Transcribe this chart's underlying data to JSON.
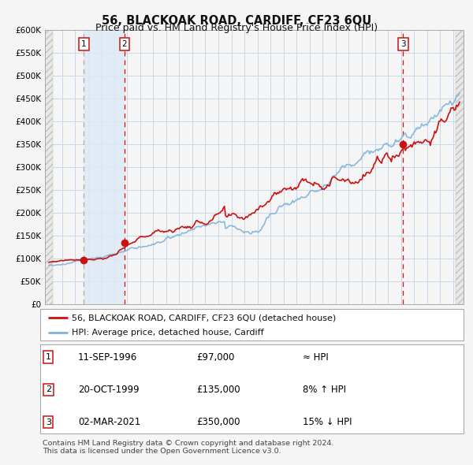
{
  "title": "56, BLACKOAK ROAD, CARDIFF, CF23 6QU",
  "subtitle": "Price paid vs. HM Land Registry's House Price Index (HPI)",
  "ylim": [
    0,
    600000
  ],
  "xlim_start": 1993.7,
  "xlim_end": 2025.8,
  "sale_dates": [
    1996.69,
    1999.8,
    2021.17
  ],
  "sale_prices": [
    97000,
    135000,
    350000
  ],
  "sale_labels": [
    "1",
    "2",
    "3"
  ],
  "shade_x1": 1996.69,
  "shade_x2": 1999.8,
  "hpi_color": "#7fb3d9",
  "price_color": "#cc1111",
  "dot_color": "#cc1111",
  "shade_color": "#deeaf5",
  "vline1_color": "#aaaaaa",
  "vline2_color": "#cc1111",
  "vline3_color": "#cc1111",
  "grid_color": "#c8d8e8",
  "bg_color": "#f5f5f5",
  "plot_bg": "#f5f5f5",
  "legend_label_price": "56, BLACKOAK ROAD, CARDIFF, CF23 6QU (detached house)",
  "legend_label_hpi": "HPI: Average price, detached house, Cardiff",
  "table_rows": [
    {
      "num": "1",
      "date": "11-SEP-1996",
      "price": "£97,000",
      "rel": "≈ HPI"
    },
    {
      "num": "2",
      "date": "20-OCT-1999",
      "price": "£135,000",
      "rel": "8% ↑ HPI"
    },
    {
      "num": "3",
      "date": "02-MAR-2021",
      "price": "£350,000",
      "rel": "15% ↓ HPI"
    }
  ],
  "footnote1": "Contains HM Land Registry data © Crown copyright and database right 2024.",
  "footnote2": "This data is licensed under the Open Government Licence v3.0."
}
